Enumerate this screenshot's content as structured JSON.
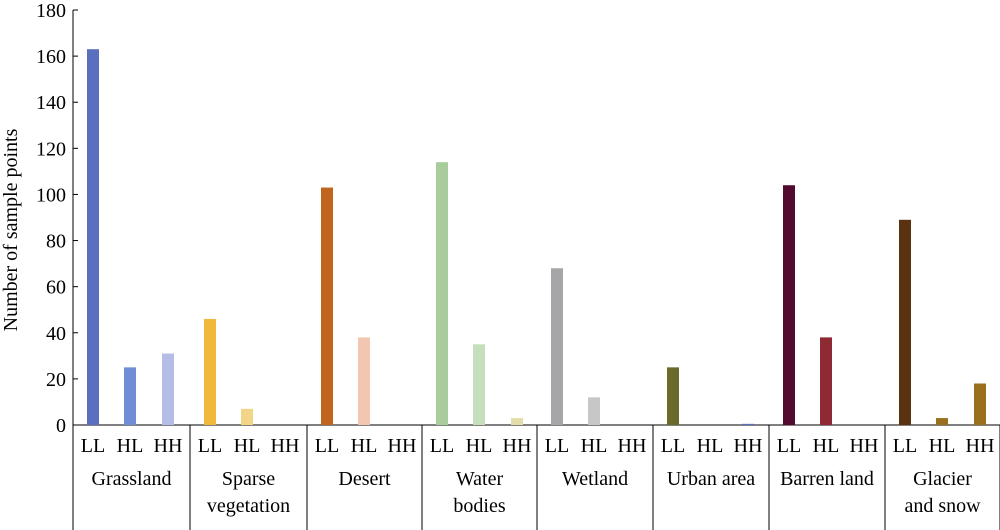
{
  "chart_data": {
    "type": "bar",
    "title": "",
    "xlabel": "",
    "ylabel": "Number of sample points",
    "ylim": [
      0,
      180
    ],
    "yticks": [
      "0",
      "20",
      "40",
      "60",
      "80",
      "100",
      "120",
      "140",
      "160",
      "180"
    ],
    "grid": false,
    "legend": "none",
    "subcategories": [
      "LL",
      "HL",
      "HH"
    ],
    "groups": [
      {
        "label_lines": [
          "Grassland"
        ],
        "values": [
          163,
          25,
          31
        ],
        "colors": [
          "#5a6fbe",
          "#6f8ed6",
          "#b3bde6"
        ]
      },
      {
        "label_lines": [
          "Sparse",
          "vegetation"
        ],
        "values": [
          46,
          7,
          0
        ],
        "colors": [
          "#f0b83c",
          "#f3d58a",
          "#f6e3b0"
        ]
      },
      {
        "label_lines": [
          "Desert"
        ],
        "values": [
          103,
          38,
          0
        ],
        "colors": [
          "#c0651d",
          "#f1c7b2",
          "#f5dccf"
        ]
      },
      {
        "label_lines": [
          "Water",
          "bodies"
        ],
        "values": [
          114,
          35,
          3
        ],
        "colors": [
          "#a9cc9c",
          "#c5dfbc",
          "#e3ddaa"
        ]
      },
      {
        "label_lines": [
          "Wetland"
        ],
        "values": [
          68,
          12,
          0
        ],
        "colors": [
          "#a6a5a8",
          "#c7c6c8",
          "#dddddd"
        ]
      },
      {
        "label_lines": [
          "Urban area"
        ],
        "values": [
          25,
          0,
          0.5
        ],
        "colors": [
          "#6b6a2a",
          "#8f8d4a",
          "#5a6fbe"
        ]
      },
      {
        "label_lines": [
          "Barren land"
        ],
        "values": [
          104,
          38,
          0
        ],
        "colors": [
          "#520b2e",
          "#8e2a33",
          "#b05a5a"
        ]
      },
      {
        "label_lines": [
          "Glacier",
          "and snow"
        ],
        "values": [
          89,
          3,
          18
        ],
        "colors": [
          "#5a3210",
          "#9a6f1e",
          "#9a6f1e"
        ]
      }
    ]
  }
}
